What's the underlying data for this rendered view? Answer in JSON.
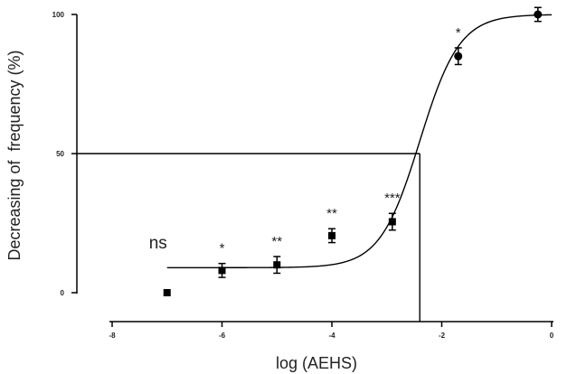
{
  "chart_data": {
    "type": "scatter",
    "xlabel": "log (AEHS)",
    "ylabel": "Decreasing of  frequency (%)",
    "xlim": [
      -8,
      0
    ],
    "ylim": [
      0,
      100
    ],
    "x_ticks": [
      -8,
      -6,
      -4,
      -2,
      0
    ],
    "x_tick_labels": [
      "-8",
      "-6",
      "-4",
      "-2",
      "0"
    ],
    "y_ticks": [
      0,
      50,
      100
    ],
    "y_tick_labels": [
      "0",
      "50",
      "100"
    ],
    "grid": false,
    "points": [
      {
        "x": -7,
        "y": 0,
        "err": 0,
        "label": "ns",
        "marker": "square"
      },
      {
        "x": -6,
        "y": 8,
        "err": 2.5,
        "label": "*",
        "marker": "square"
      },
      {
        "x": -5,
        "y": 10,
        "err": 3,
        "label": "**",
        "marker": "square"
      },
      {
        "x": -4,
        "y": 20.5,
        "err": 2.5,
        "label": "**",
        "marker": "square"
      },
      {
        "x": -2.9,
        "y": 25.5,
        "err": 3,
        "label": "***",
        "marker": "square"
      },
      {
        "x": -1.7,
        "y": 85,
        "err": 3,
        "label": "*",
        "marker": "circle"
      },
      {
        "x": -0.25,
        "y": 100,
        "err": 2.5,
        "label": "",
        "marker": "circle"
      }
    ],
    "fit_curve": {
      "bottom": 9,
      "top": 100,
      "log_ec50": -2.4,
      "hill_slope": 1.2,
      "x_range": [
        -7,
        0
      ]
    },
    "reference_lines": {
      "y": 50,
      "x": -2.4
    }
  }
}
